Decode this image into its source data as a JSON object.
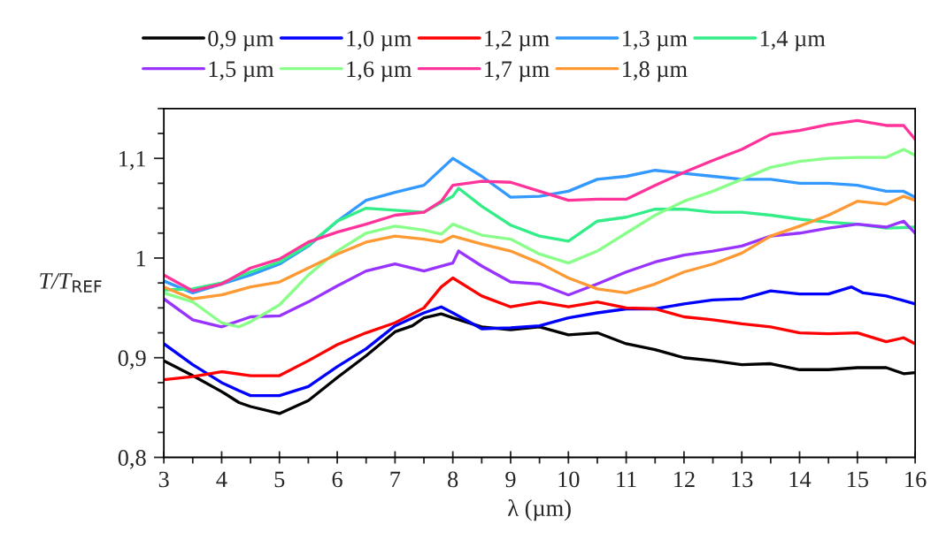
{
  "chart_data": {
    "type": "line",
    "xlabel": "λ (µm)",
    "ylabel": "T/T$_{REF}$",
    "legend": "top",
    "grid": false,
    "marker": "none",
    "line_style": "solid",
    "xlim": [
      3,
      16
    ],
    "ylim": [
      0.8,
      1.15
    ],
    "xticks": [
      3,
      {
        "value": 3.5,
        "label": null
      },
      4,
      {
        "value": 4.5,
        "label": null
      },
      5,
      {
        "value": 5.5,
        "label": null
      },
      6,
      {
        "value": 6.5,
        "label": null
      },
      7,
      {
        "value": 7.5,
        "label": null
      },
      8,
      {
        "value": 8.5,
        "label": null
      },
      9,
      {
        "value": 9.5,
        "label": null
      },
      10,
      {
        "value": 10.5,
        "label": null
      },
      11,
      {
        "value": 11.5,
        "label": null
      },
      12,
      {
        "value": 12.5,
        "label": null
      },
      13,
      {
        "value": 13.5,
        "label": null
      },
      14,
      {
        "value": 14.5,
        "label": null
      },
      15,
      {
        "value": 15.5,
        "label": null
      },
      16
    ],
    "yticks": [
      {
        "value": 0.8,
        "label": "0,8"
      },
      {
        "value": 0.825,
        "label": null
      },
      {
        "value": 0.85,
        "label": null
      },
      {
        "value": 0.875,
        "label": null
      },
      {
        "value": 0.9,
        "label": "0,9"
      },
      {
        "value": 0.925,
        "label": null
      },
      {
        "value": 0.95,
        "label": null
      },
      {
        "value": 0.975,
        "label": null
      },
      {
        "value": 1,
        "label": "1"
      },
      {
        "value": 1.025,
        "label": null
      },
      {
        "value": 1.05,
        "label": null
      },
      {
        "value": 1.075,
        "label": null
      },
      {
        "value": 1.1,
        "label": "1,1"
      },
      {
        "value": 1.125,
        "label": null
      },
      {
        "value": 1.15,
        "label": null
      }
    ],
    "series": [
      {
        "name": "0,9 µm",
        "color": "#000000",
        "x": [
          3,
          3.5,
          4,
          4.3,
          4.5,
          5,
          5.5,
          6,
          6.5,
          7,
          7.3,
          7.5,
          7.8,
          8,
          8.5,
          9,
          9.5,
          10,
          10.5,
          11,
          11.5,
          12,
          12.5,
          13,
          13.5,
          14,
          14.5,
          15,
          15.5,
          15.8,
          16
        ],
        "values": [
          0.897,
          0.882,
          0.866,
          0.855,
          0.851,
          0.844,
          0.857,
          0.88,
          0.902,
          0.926,
          0.932,
          0.94,
          0.944,
          0.94,
          0.931,
          0.928,
          0.931,
          0.923,
          0.925,
          0.914,
          0.908,
          0.9,
          0.897,
          0.893,
          0.894,
          0.888,
          0.888,
          0.89,
          0.89,
          0.884,
          0.885
        ]
      },
      {
        "name": "1,0 µm",
        "color": "#0000ff",
        "x": [
          3,
          3.5,
          4,
          4.3,
          4.5,
          5,
          5.5,
          6,
          6.5,
          7,
          7.5,
          7.8,
          8,
          8.5,
          9,
          9.5,
          10,
          10.5,
          11,
          11.5,
          12,
          12.5,
          13,
          13.5,
          14,
          14.5,
          14.9,
          15.1,
          15.5,
          16
        ],
        "values": [
          0.914,
          0.893,
          0.875,
          0.867,
          0.862,
          0.862,
          0.871,
          0.891,
          0.909,
          0.932,
          0.945,
          0.951,
          0.945,
          0.929,
          0.93,
          0.932,
          0.94,
          0.945,
          0.949,
          0.949,
          0.954,
          0.958,
          0.959,
          0.967,
          0.964,
          0.964,
          0.971,
          0.965,
          0.962,
          0.954
        ]
      },
      {
        "name": "1,2 µm",
        "color": "#ff0000",
        "x": [
          3,
          3.5,
          4,
          4.5,
          5,
          5.5,
          6,
          6.5,
          7,
          7.5,
          7.8,
          8,
          8.5,
          9,
          9.5,
          10,
          10.5,
          11,
          11.5,
          12,
          12.5,
          13,
          13.5,
          14,
          14.5,
          15,
          15.5,
          15.8,
          16
        ],
        "values": [
          0.878,
          0.881,
          0.886,
          0.882,
          0.882,
          0.897,
          0.913,
          0.925,
          0.935,
          0.95,
          0.971,
          0.98,
          0.962,
          0.951,
          0.956,
          0.951,
          0.956,
          0.95,
          0.949,
          0.941,
          0.938,
          0.934,
          0.931,
          0.925,
          0.924,
          0.925,
          0.916,
          0.92,
          0.914
        ]
      },
      {
        "name": "1,3 µm",
        "color": "#3399ff",
        "x": [
          3,
          3.5,
          4,
          4.5,
          5,
          5.5,
          6,
          6.5,
          7,
          7.5,
          8,
          8.5,
          9,
          9.5,
          10,
          10.5,
          11,
          11.5,
          12,
          12.5,
          13,
          13.5,
          14,
          14.5,
          15,
          15.5,
          15.8,
          16
        ],
        "values": [
          0.977,
          0.965,
          0.974,
          0.983,
          0.994,
          1.012,
          1.037,
          1.058,
          1.066,
          1.073,
          1.1,
          1.082,
          1.061,
          1.062,
          1.067,
          1.079,
          1.082,
          1.088,
          1.085,
          1.082,
          1.079,
          1.079,
          1.075,
          1.075,
          1.073,
          1.067,
          1.067,
          1.061
        ]
      },
      {
        "name": "1,4 µm",
        "color": "#33ee88",
        "x": [
          3,
          3.5,
          4,
          4.5,
          5,
          5.5,
          6,
          6.5,
          7,
          7.5,
          8,
          8.1,
          8.5,
          9,
          9.5,
          10,
          10.5,
          11,
          11.5,
          12,
          12.5,
          13,
          13.5,
          14,
          14.5,
          15,
          15.5,
          16
        ],
        "values": [
          0.968,
          0.969,
          0.975,
          0.986,
          0.996,
          1.013,
          1.037,
          1.05,
          1.048,
          1.046,
          1.062,
          1.07,
          1.052,
          1.033,
          1.022,
          1.017,
          1.037,
          1.041,
          1.049,
          1.049,
          1.046,
          1.046,
          1.043,
          1.039,
          1.036,
          1.034,
          1.03,
          1.031
        ]
      },
      {
        "name": "1,5 µm",
        "color": "#9933ff",
        "x": [
          3,
          3.5,
          4,
          4.5,
          5,
          5.5,
          6,
          6.5,
          7,
          7.5,
          8,
          8.1,
          8.5,
          9,
          9.5,
          10,
          10.5,
          11,
          11.5,
          12,
          12.5,
          13,
          13.5,
          14,
          14.5,
          15,
          15.5,
          15.8,
          16
        ],
        "values": [
          0.959,
          0.938,
          0.931,
          0.941,
          0.942,
          0.956,
          0.972,
          0.987,
          0.994,
          0.987,
          0.995,
          1.007,
          0.992,
          0.976,
          0.974,
          0.963,
          0.974,
          0.986,
          0.996,
          1.003,
          1.007,
          1.012,
          1.022,
          1.025,
          1.03,
          1.034,
          1.031,
          1.037,
          1.025
        ]
      },
      {
        "name": "1,6 µm",
        "color": "#88ff88",
        "x": [
          3,
          3.5,
          4,
          4.3,
          4.5,
          5,
          5.5,
          6,
          6.5,
          7,
          7.5,
          7.8,
          8,
          8.5,
          9,
          9.5,
          10,
          10.5,
          11,
          11.5,
          12,
          12.5,
          13,
          13.5,
          14,
          14.5,
          15,
          15.5,
          15.8,
          16
        ],
        "values": [
          0.965,
          0.956,
          0.935,
          0.931,
          0.936,
          0.953,
          0.983,
          1.007,
          1.025,
          1.032,
          1.028,
          1.024,
          1.034,
          1.023,
          1.019,
          1.004,
          0.995,
          1.007,
          1.025,
          1.043,
          1.057,
          1.067,
          1.079,
          1.091,
          1.097,
          1.1,
          1.101,
          1.101,
          1.109,
          1.103
        ]
      },
      {
        "name": "1,7 µm",
        "color": "#ff3399",
        "x": [
          3,
          3.5,
          4,
          4.5,
          5,
          5.5,
          6,
          6.5,
          7,
          7.5,
          7.8,
          8,
          8.5,
          9,
          9.5,
          10,
          10.5,
          11,
          11.5,
          12,
          12.5,
          13,
          13.5,
          14,
          14.5,
          15,
          15.5,
          15.8,
          16
        ],
        "values": [
          0.983,
          0.967,
          0.974,
          0.99,
          0.999,
          1.016,
          1.026,
          1.034,
          1.043,
          1.046,
          1.057,
          1.073,
          1.077,
          1.076,
          1.067,
          1.058,
          1.059,
          1.059,
          1.073,
          1.086,
          1.098,
          1.109,
          1.124,
          1.128,
          1.134,
          1.138,
          1.133,
          1.133,
          1.119
        ]
      },
      {
        "name": "1,8 µm",
        "color": "#ff9933",
        "x": [
          3,
          3.5,
          4,
          4.5,
          5,
          5.5,
          6,
          6.5,
          7,
          7.5,
          7.8,
          8,
          8.5,
          9,
          9.5,
          10,
          10.5,
          11,
          11.5,
          12,
          12.5,
          13,
          13.5,
          14,
          14.5,
          15,
          15.5,
          15.8,
          16
        ],
        "values": [
          0.971,
          0.959,
          0.963,
          0.971,
          0.976,
          0.99,
          1.004,
          1.016,
          1.022,
          1.019,
          1.016,
          1.022,
          1.014,
          1.007,
          0.995,
          0.98,
          0.969,
          0.965,
          0.974,
          0.986,
          0.994,
          1.005,
          1.022,
          1.032,
          1.043,
          1.057,
          1.054,
          1.062,
          1.058
        ]
      }
    ]
  }
}
